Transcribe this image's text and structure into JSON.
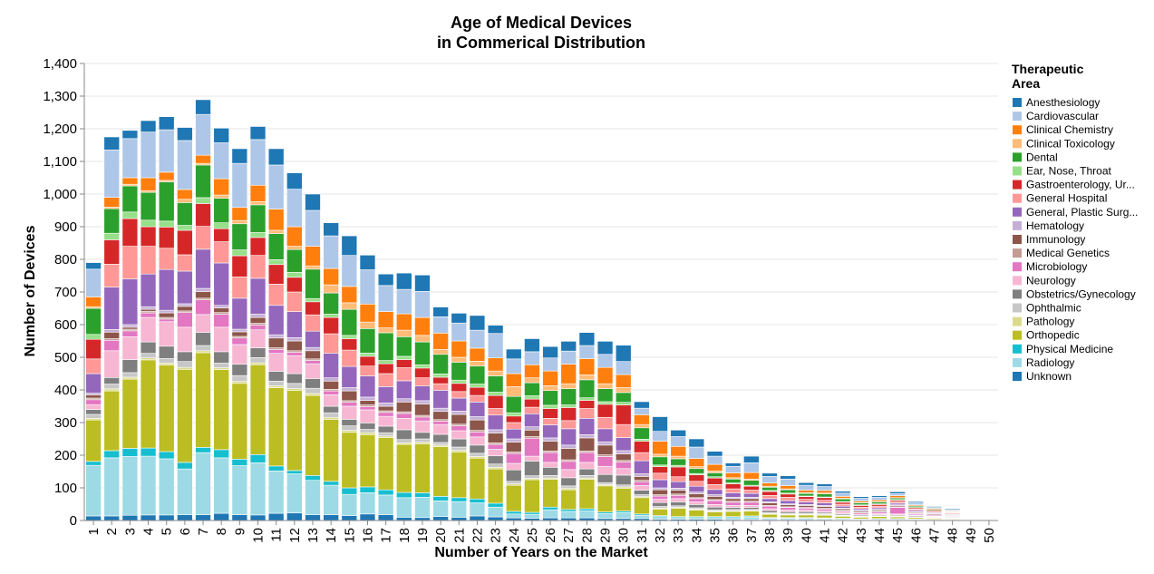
{
  "chart_data": {
    "type": "bar",
    "stacked": true,
    "title": [
      "Age of Medical Devices",
      "in Commerical Distribution"
    ],
    "xlabel": "Number of Years on the Market",
    "ylabel": "Number of Devices",
    "ylim": [
      0,
      1400
    ],
    "yticks": [
      0,
      100,
      200,
      300,
      400,
      500,
      600,
      700,
      800,
      900,
      1000,
      1100,
      1200,
      1300,
      1400
    ],
    "ytick_labels": [
      "0",
      "100",
      "200",
      "300",
      "400",
      "500",
      "600",
      "700",
      "800",
      "900",
      "1,000",
      "1,100",
      "1,200",
      "1,300",
      "1,400"
    ],
    "grid": true,
    "legend_title": [
      "Therapeutic",
      "Area"
    ],
    "legend_position": "right",
    "categories": [
      "1",
      "2",
      "3",
      "4",
      "5",
      "6",
      "7",
      "8",
      "9",
      "10",
      "11",
      "12",
      "13",
      "14",
      "15",
      "16",
      "17",
      "18",
      "19",
      "20",
      "21",
      "22",
      "23",
      "24",
      "25",
      "26",
      "27",
      "28",
      "29",
      "30",
      "31",
      "32",
      "33",
      "34",
      "35",
      "36",
      "37",
      "38",
      "39",
      "40",
      "41",
      "42",
      "43",
      "44",
      "45",
      "46",
      "47",
      "48",
      "49",
      "50"
    ],
    "series": [
      {
        "name": "Unknown",
        "legend_label": "Unknown",
        "color": "#1f77b4",
        "values": [
          14,
          14,
          16,
          17,
          17,
          18,
          18,
          22,
          18,
          17,
          22,
          23,
          18,
          18,
          15,
          20,
          18,
          10,
          9,
          12,
          10,
          14,
          11,
          8,
          7,
          8,
          8,
          8,
          6,
          6,
          6,
          4,
          4,
          4,
          4,
          3,
          3,
          3,
          3,
          3,
          3,
          2,
          2,
          2,
          2,
          2,
          1,
          1,
          0,
          0
        ]
      },
      {
        "name": "Radiology",
        "legend_label": "Radiology",
        "color": "#9edae5",
        "values": [
          155,
          178,
          180,
          180,
          172,
          140,
          190,
          170,
          150,
          160,
          130,
          120,
          105,
          90,
          65,
          65,
          60,
          60,
          62,
          48,
          48,
          40,
          30,
          12,
          12,
          25,
          20,
          22,
          15,
          18,
          10,
          8,
          5,
          5,
          5,
          6,
          8,
          4,
          4,
          4,
          3,
          3,
          2,
          3,
          3,
          2,
          2,
          2,
          0,
          0
        ]
      },
      {
        "name": "Physical Medicine",
        "legend_label": "Physical Medicine",
        "color": "#17becf",
        "values": [
          12,
          22,
          25,
          25,
          22,
          20,
          16,
          25,
          20,
          25,
          15,
          10,
          15,
          12,
          20,
          18,
          16,
          16,
          14,
          14,
          12,
          12,
          12,
          8,
          6,
          8,
          6,
          6,
          5,
          5,
          4,
          3,
          3,
          3,
          3,
          3,
          3,
          2,
          2,
          2,
          2,
          2,
          1,
          1,
          1,
          1,
          1,
          1,
          0,
          0
        ]
      },
      {
        "name": "Orthopedic",
        "legend_label": "Orthopedic",
        "color": "#bcbd22",
        "values": [
          127,
          183,
          212,
          270,
          265,
          285,
          290,
          245,
          232,
          275,
          240,
          245,
          245,
          190,
          170,
          160,
          160,
          147,
          150,
          152,
          140,
          125,
          105,
          80,
          100,
          85,
          60,
          90,
          80,
          70,
          50,
          20,
          25,
          20,
          14,
          16,
          15,
          10,
          8,
          8,
          8,
          6,
          5,
          6,
          5,
          4,
          3,
          2,
          0,
          0
        ]
      },
      {
        "name": "Pathology",
        "legend_label": "Pathology",
        "color": "#dbdb8d",
        "values": [
          5,
          6,
          6,
          6,
          6,
          6,
          6,
          6,
          6,
          6,
          6,
          6,
          6,
          6,
          6,
          6,
          5,
          5,
          5,
          5,
          5,
          5,
          5,
          4,
          4,
          4,
          4,
          4,
          4,
          4,
          3,
          3,
          3,
          3,
          3,
          2,
          2,
          2,
          2,
          2,
          2,
          2,
          1,
          1,
          1,
          1,
          1,
          1,
          0,
          0
        ]
      },
      {
        "name": "Ophthalmic",
        "legend_label": "Ophthalmic",
        "color": "#c7c7c7",
        "values": [
          12,
          15,
          14,
          14,
          14,
          18,
          16,
          14,
          18,
          16,
          14,
          16,
          16,
          14,
          14,
          10,
          10,
          10,
          10,
          8,
          10,
          10,
          10,
          8,
          8,
          8,
          8,
          8,
          6,
          6,
          6,
          5,
          5,
          4,
          4,
          4,
          3,
          3,
          3,
          3,
          3,
          2,
          2,
          2,
          2,
          2,
          1,
          1,
          0,
          0
        ]
      },
      {
        "name": "Obstetrics/Gynecology",
        "legend_label": "Obstetrics/Gynecology",
        "color": "#7f7f7f",
        "values": [
          15,
          20,
          40,
          35,
          38,
          30,
          40,
          35,
          35,
          30,
          30,
          30,
          30,
          20,
          20,
          20,
          20,
          30,
          20,
          25,
          25,
          25,
          25,
          35,
          45,
          25,
          25,
          20,
          25,
          30,
          14,
          12,
          12,
          10,
          8,
          6,
          6,
          6,
          5,
          5,
          4,
          4,
          3,
          3,
          3,
          3,
          2,
          2,
          0,
          0
        ]
      },
      {
        "name": "Neurology",
        "legend_label": "Neurology",
        "color": "#f7b6d2",
        "values": [
          15,
          82,
          70,
          75,
          75,
          75,
          55,
          75,
          60,
          55,
          55,
          55,
          45,
          35,
          40,
          40,
          30,
          35,
          35,
          30,
          25,
          25,
          20,
          20,
          15,
          15,
          25,
          20,
          25,
          20,
          14,
          10,
          10,
          8,
          8,
          6,
          6,
          6,
          5,
          5,
          4,
          4,
          3,
          3,
          3,
          2,
          2,
          2,
          0,
          0
        ]
      },
      {
        "name": "Microbiology",
        "legend_label": "Microbiology",
        "color": "#e377c2",
        "values": [
          15,
          32,
          18,
          14,
          8,
          45,
          45,
          40,
          20,
          15,
          12,
          10,
          10,
          12,
          12,
          10,
          12,
          15,
          12,
          10,
          15,
          15,
          15,
          30,
          55,
          30,
          25,
          30,
          30,
          20,
          12,
          10,
          10,
          10,
          12,
          10,
          10,
          8,
          8,
          6,
          6,
          4,
          4,
          5,
          20,
          4,
          3,
          2,
          0,
          0
        ]
      },
      {
        "name": "Medical Genetics",
        "legend_label": "Medical Genetics",
        "color": "#c49c94",
        "values": [
          5,
          5,
          5,
          5,
          5,
          5,
          5,
          5,
          5,
          5,
          5,
          5,
          5,
          5,
          5,
          5,
          5,
          5,
          5,
          5,
          5,
          5,
          5,
          5,
          5,
          5,
          5,
          5,
          5,
          5,
          4,
          4,
          4,
          3,
          3,
          3,
          3,
          2,
          2,
          2,
          2,
          2,
          2,
          2,
          2,
          1,
          1,
          1,
          0,
          0
        ]
      },
      {
        "name": "Immunology",
        "legend_label": "Immunology",
        "color": "#8c564b",
        "values": [
          10,
          20,
          6,
          6,
          14,
          14,
          20,
          14,
          14,
          18,
          30,
          30,
          25,
          25,
          30,
          14,
          14,
          30,
          35,
          25,
          30,
          32,
          30,
          30,
          20,
          30,
          35,
          40,
          30,
          20,
          12,
          15,
          12,
          12,
          10,
          8,
          8,
          8,
          6,
          6,
          6,
          5,
          4,
          4,
          4,
          3,
          3,
          2,
          0,
          0
        ]
      },
      {
        "name": "Hematology",
        "legend_label": "Hematology",
        "color": "#c5b0d5",
        "values": [
          5,
          8,
          8,
          8,
          8,
          8,
          10,
          8,
          8,
          10,
          10,
          10,
          10,
          10,
          10,
          10,
          10,
          10,
          10,
          10,
          10,
          10,
          10,
          10,
          10,
          10,
          10,
          10,
          10,
          10,
          8,
          6,
          6,
          5,
          5,
          4,
          4,
          3,
          3,
          3,
          3,
          2,
          2,
          2,
          2,
          2,
          1,
          1,
          0,
          0
        ]
      },
      {
        "name": "General, Plastic Surgery",
        "legend_label": "General, Plastic Surg...",
        "color": "#9467bd",
        "values": [
          60,
          130,
          140,
          100,
          125,
          100,
          120,
          130,
          95,
          110,
          90,
          80,
          50,
          75,
          65,
          65,
          50,
          55,
          45,
          55,
          40,
          45,
          45,
          30,
          40,
          40,
          50,
          50,
          40,
          40,
          40,
          25,
          20,
          18,
          16,
          14,
          12,
          10,
          10,
          8,
          8,
          6,
          5,
          5,
          5,
          4,
          3,
          2,
          0,
          0
        ]
      },
      {
        "name": "General Hospital",
        "legend_label": "General Hospital",
        "color": "#ff9896",
        "values": [
          45,
          70,
          100,
          85,
          65,
          50,
          70,
          65,
          65,
          70,
          65,
          60,
          50,
          60,
          50,
          30,
          40,
          40,
          25,
          20,
          20,
          20,
          20,
          20,
          20,
          20,
          25,
          30,
          35,
          40,
          25,
          20,
          15,
          15,
          15,
          12,
          10,
          10,
          10,
          8,
          8,
          6,
          5,
          5,
          5,
          4,
          3,
          3,
          0,
          0
        ]
      },
      {
        "name": "Gastroenterology, Urology",
        "legend_label": "Gastroenterology, Ur...",
        "color": "#d62728",
        "values": [
          60,
          75,
          85,
          60,
          65,
          75,
          70,
          40,
          65,
          55,
          60,
          45,
          40,
          50,
          35,
          30,
          30,
          25,
          30,
          20,
          25,
          25,
          40,
          20,
          25,
          30,
          40,
          25,
          40,
          60,
          35,
          20,
          30,
          20,
          20,
          15,
          12,
          12,
          10,
          8,
          8,
          6,
          5,
          5,
          4,
          4,
          3,
          2,
          0,
          0
        ]
      },
      {
        "name": "Ear, Nose, Throat",
        "legend_label": "Ear, Nose, Throat",
        "color": "#98df8a",
        "values": [
          15,
          20,
          20,
          20,
          18,
          15,
          18,
          18,
          18,
          15,
          15,
          15,
          10,
          10,
          10,
          10,
          10,
          10,
          10,
          10,
          10,
          10,
          10,
          10,
          10,
          10,
          8,
          8,
          8,
          8,
          6,
          5,
          5,
          4,
          4,
          3,
          3,
          3,
          3,
          2,
          2,
          2,
          2,
          2,
          2,
          1,
          1,
          1,
          0,
          0
        ]
      },
      {
        "name": "Dental",
        "legend_label": "Dental",
        "color": "#2ca02c",
        "values": [
          80,
          75,
          80,
          85,
          120,
          70,
          100,
          75,
          80,
          85,
          80,
          70,
          90,
          65,
          80,
          75,
          85,
          60,
          70,
          60,
          55,
          55,
          50,
          50,
          40,
          45,
          50,
          55,
          40,
          30,
          35,
          25,
          20,
          15,
          12,
          12,
          15,
          10,
          10,
          8,
          10,
          8,
          6,
          6,
          5,
          4,
          3,
          2,
          0,
          0
        ]
      },
      {
        "name": "Clinical Toxicology",
        "legend_label": "Clinical Toxicology",
        "color": "#ffbb78",
        "values": [
          5,
          5,
          5,
          5,
          5,
          10,
          5,
          10,
          10,
          10,
          10,
          10,
          10,
          25,
          20,
          20,
          15,
          20,
          20,
          15,
          15,
          15,
          15,
          30,
          15,
          15,
          15,
          15,
          15,
          15,
          10,
          8,
          8,
          6,
          6,
          4,
          4,
          3,
          3,
          2,
          2,
          2,
          1,
          1,
          1,
          1,
          0,
          0,
          0,
          0
        ]
      },
      {
        "name": "Clinical Chemistry",
        "legend_label": "Clinical Chemistry",
        "color": "#ff7f0e",
        "values": [
          30,
          30,
          20,
          40,
          25,
          30,
          25,
          50,
          40,
          50,
          65,
          60,
          60,
          50,
          50,
          55,
          50,
          50,
          55,
          50,
          50,
          40,
          40,
          40,
          40,
          45,
          60,
          50,
          50,
          40,
          30,
          40,
          30,
          25,
          20,
          15,
          20,
          10,
          10,
          8,
          8,
          6,
          5,
          5,
          6,
          3,
          3,
          2,
          0,
          0
        ]
      },
      {
        "name": "Cardiovascular",
        "legend_label": "Cardiovascular",
        "color": "#aec7e8",
        "values": [
          85,
          145,
          120,
          140,
          130,
          150,
          125,
          110,
          135,
          140,
          135,
          115,
          110,
          100,
          95,
          105,
          80,
          75,
          80,
          50,
          55,
          55,
          75,
          45,
          40,
          40,
          40,
          40,
          40,
          40,
          20,
          30,
          30,
          35,
          25,
          20,
          30,
          20,
          20,
          15,
          12,
          10,
          8,
          8,
          6,
          6,
          3,
          3,
          0,
          0
        ]
      },
      {
        "name": "Anesthesiology",
        "legend_label": "Anesthesiology",
        "color": "#1f77b4",
        "values": [
          20,
          40,
          25,
          35,
          40,
          40,
          45,
          45,
          45,
          40,
          50,
          50,
          50,
          40,
          60,
          45,
          35,
          50,
          50,
          30,
          30,
          45,
          25,
          30,
          40,
          35,
          30,
          40,
          40,
          50,
          20,
          45,
          20,
          25,
          15,
          10,
          20,
          10,
          10,
          8,
          8,
          6,
          5,
          5,
          6,
          4,
          3,
          3,
          0,
          0
        ]
      }
    ]
  }
}
